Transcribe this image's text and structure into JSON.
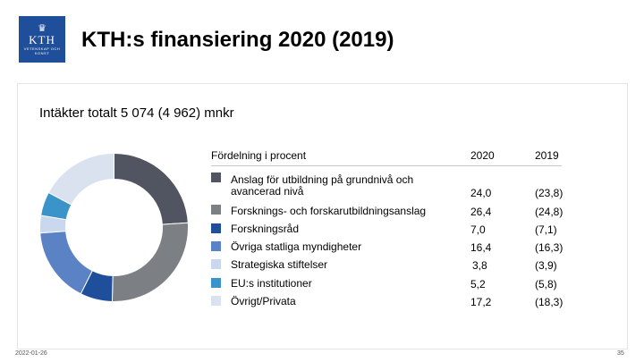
{
  "logo": {
    "name": "KTH",
    "sub": "VETENSKAP OCH KONST"
  },
  "title": "KTH:s finansiering 2020 (2019)",
  "subtitle": "Intäkter totalt 5 074 (4 962) mnkr",
  "table": {
    "header_label": "Fördelning i procent",
    "header_2020": "2020",
    "header_2019": "2019"
  },
  "chart_data": {
    "type": "pie",
    "donut": true,
    "categories": [
      "Anslag för utbildning på grundnivå och avancerad nivå",
      "Forsknings- och forskarutbildningsanslag",
      "Forskningsråd",
      "Övriga statliga myndigheter",
      "Strategiska stiftelser",
      "EU:s institutioner",
      "Övrigt/Privata"
    ],
    "series": [
      {
        "name": "2020",
        "values": [
          24.0,
          26.4,
          7.0,
          16.4,
          3.8,
          5.2,
          17.2
        ],
        "labels": [
          "24,0",
          "26,4",
          "7,0",
          "16,4",
          "3,8",
          "5,2",
          "17,2"
        ]
      },
      {
        "name": "2019",
        "values": [
          23.8,
          24.8,
          7.1,
          16.3,
          3.9,
          5.8,
          18.3
        ],
        "labels": [
          "(23,8)",
          "(24,8)",
          "(7,1)",
          "(16,3)",
          "(3,9)",
          "(5,8)",
          "(18,3)"
        ]
      }
    ],
    "colors": [
      "#515561",
      "#7c7f83",
      "#1f4f9a",
      "#5b82c4",
      "#c9d8ef",
      "#3a93c9",
      "#d9e2ee"
    ]
  },
  "footer": {
    "date": "2022-01-26",
    "page": "35"
  }
}
